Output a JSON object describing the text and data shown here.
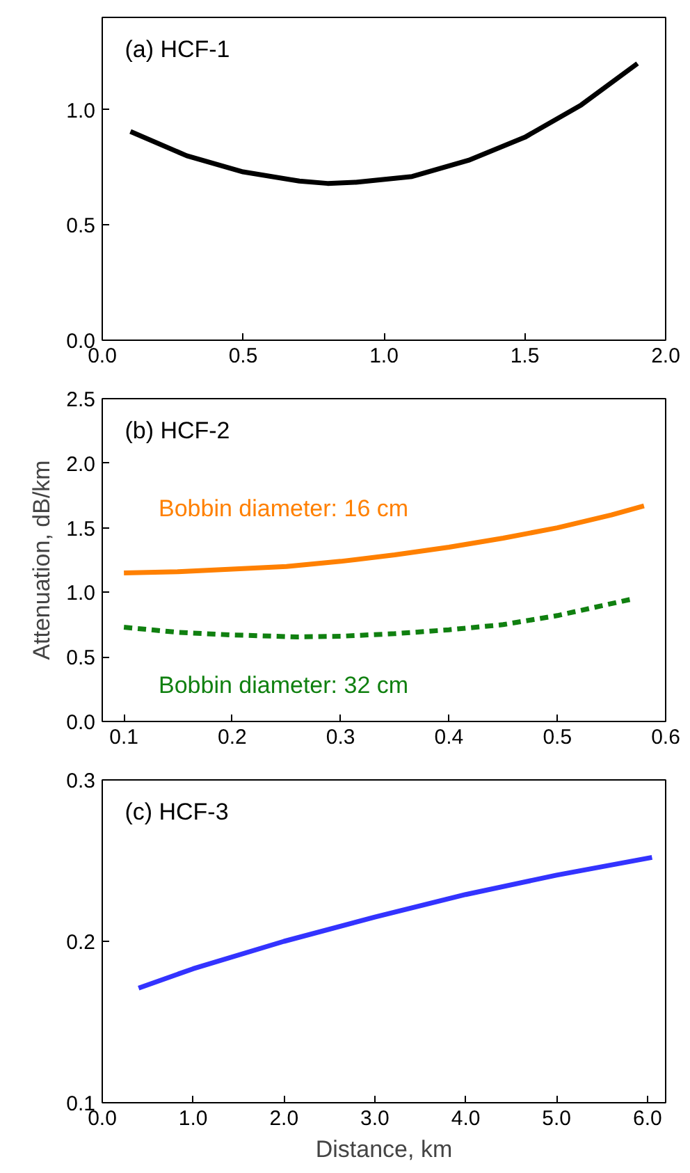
{
  "chart_data": [
    {
      "type": "line",
      "title": "(a) HCF-1",
      "xlim": [
        0,
        2
      ],
      "ylim": [
        0,
        1.4
      ],
      "grid": false,
      "legend": false,
      "xticks": [
        {
          "value": 0,
          "label": "0.0"
        },
        0.5,
        {
          "value": 1,
          "label": "1.0"
        },
        1.5,
        {
          "value": 2,
          "label": "2.0"
        }
      ],
      "yticks": [
        {
          "value": 0,
          "label": "0.0"
        },
        0.5,
        {
          "value": 1,
          "label": "1.0"
        }
      ],
      "series": [
        {
          "color": "#000000",
          "line_style": "solid",
          "x": [
            0.1,
            0.3,
            0.5,
            0.7,
            0.8,
            0.9,
            1.1,
            1.3,
            1.5,
            1.7,
            1.9
          ],
          "values": [
            0.905,
            0.8,
            0.73,
            0.69,
            0.68,
            0.685,
            0.71,
            0.78,
            0.88,
            1.02,
            1.2
          ]
        }
      ]
    },
    {
      "type": "line",
      "title": "(b) HCF-2",
      "ylabel": "Attenuation, dB/km",
      "xlim": [
        0.08,
        0.6
      ],
      "ylim": [
        0,
        2.5
      ],
      "grid": false,
      "legend": false,
      "xticks": [
        0.1,
        0.2,
        0.3,
        0.4,
        0.5,
        0.6
      ],
      "yticks": [
        {
          "value": 0,
          "label": "0.0"
        },
        0.5,
        {
          "value": 1,
          "label": "1.0"
        },
        1.5,
        {
          "value": 2,
          "label": "2.0"
        },
        2.5
      ],
      "series": [
        {
          "name": "Bobbin diameter: 16 cm",
          "color": "#ff8000",
          "line_style": "solid",
          "x": [
            0.1,
            0.15,
            0.2,
            0.25,
            0.3,
            0.35,
            0.4,
            0.45,
            0.5,
            0.55,
            0.58
          ],
          "values": [
            1.15,
            1.16,
            1.18,
            1.2,
            1.24,
            1.29,
            1.35,
            1.42,
            1.5,
            1.6,
            1.67
          ]
        },
        {
          "name": "Bobbin diameter: 32 cm",
          "color": "#108010",
          "line_style": "dashed",
          "x": [
            0.1,
            0.15,
            0.2,
            0.26,
            0.3,
            0.35,
            0.4,
            0.45,
            0.5,
            0.57
          ],
          "values": [
            0.73,
            0.69,
            0.67,
            0.655,
            0.66,
            0.68,
            0.71,
            0.75,
            0.82,
            0.95
          ]
        }
      ]
    },
    {
      "type": "line",
      "title": "(c) HCF-3",
      "xlabel": "Distance, km",
      "xlim": [
        0,
        6.2
      ],
      "ylim": [
        0.1,
        0.3
      ],
      "grid": false,
      "legend": false,
      "xticks": [
        {
          "value": 0,
          "label": "0.0"
        },
        {
          "value": 1,
          "label": "1.0"
        },
        {
          "value": 2,
          "label": "2.0"
        },
        {
          "value": 3,
          "label": "3.0"
        },
        {
          "value": 4,
          "label": "4.0"
        },
        {
          "value": 5,
          "label": "5.0"
        },
        {
          "value": 6,
          "label": "6.0"
        }
      ],
      "yticks": [
        0.1,
        0.2,
        0.3
      ],
      "series": [
        {
          "color": "#3333ff",
          "line_style": "solid",
          "x": [
            0.4,
            1,
            2,
            3,
            4,
            5,
            6.05
          ],
          "values": [
            0.171,
            0.183,
            0.2,
            0.215,
            0.229,
            0.241,
            0.252
          ]
        }
      ]
    }
  ]
}
